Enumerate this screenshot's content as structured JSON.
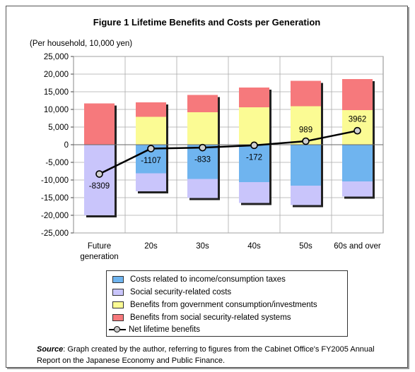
{
  "chart_data": {
    "type": "bar",
    "stacked": true,
    "title": "Figure 1 Lifetime Benefits and Costs per Generation",
    "unit_label": "(Per household, 10,000 yen)",
    "ylim": [
      -25000,
      25000
    ],
    "yticks": [
      "25,000",
      "20,000",
      "15,000",
      "10,000",
      "5,000",
      "0",
      "-5,000",
      "-10,000",
      "-15,000",
      "-20,000",
      "-25,000"
    ],
    "ytick_values": [
      25000,
      20000,
      15000,
      10000,
      5000,
      0,
      -5000,
      -10000,
      -15000,
      -20000,
      -25000
    ],
    "grid": true,
    "categories": [
      [
        "Future",
        "generation"
      ],
      [
        "20s"
      ],
      [
        "30s"
      ],
      [
        "40s"
      ],
      [
        "50s"
      ],
      [
        "60s and over"
      ]
    ],
    "series": [
      {
        "name": "Costs related to income/consumption taxes",
        "color": "#6fb4ef",
        "values": [
          0,
          -8100,
          -9700,
          -10600,
          -11600,
          -10400
        ]
      },
      {
        "name": "Social security-related costs",
        "color": "#c9c5fb",
        "values": [
          -20000,
          -5100,
          -5400,
          -5900,
          -5500,
          -4300
        ]
      },
      {
        "name": "Benefits from government consumption/investments",
        "color": "#fbfb94",
        "values": [
          0,
          7900,
          9200,
          10600,
          10900,
          9800
        ]
      },
      {
        "name": "Benefits from social security-related systems",
        "color": "#f6797c",
        "values": [
          11700,
          4100,
          4900,
          5600,
          7200,
          8800
        ]
      }
    ],
    "net": {
      "name": "Net lifetime benefits",
      "values": [
        -8309,
        -1107,
        -833,
        -172,
        989,
        3962
      ],
      "labels": [
        "-8309",
        "-1107",
        "-833",
        "-172",
        "989",
        "3962"
      ]
    },
    "legend_position": "bottom"
  },
  "source": {
    "label": "Source",
    "text": ": Graph created by the author, referring to figures from the Cabinet Office's FY2005 Annual Report on the Japanese Economy and Public Finance."
  }
}
